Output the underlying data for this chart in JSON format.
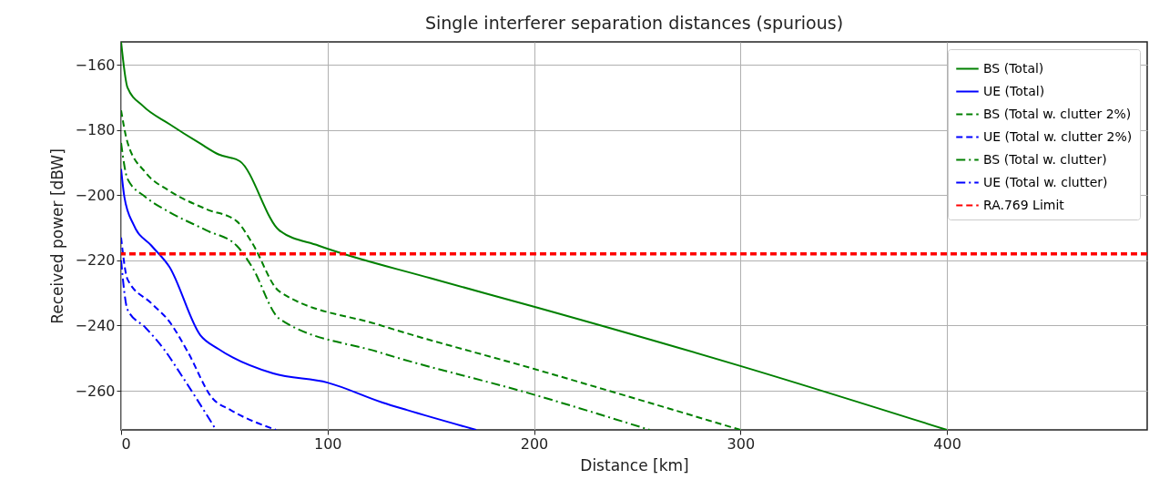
{
  "chart_data": {
    "type": "line",
    "title": "Single interferer separation distances (spurious)",
    "xlabel": "Distance [km]",
    "ylabel": "Received power [dBW]",
    "xlim": [
      0,
      497
    ],
    "ylim": [
      -272,
      -153
    ],
    "xticks": [
      0,
      100,
      200,
      300,
      400
    ],
    "yticks": [
      {
        "value": -160,
        "label": "−160"
      },
      {
        "value": -180,
        "label": "−180"
      },
      {
        "value": -200,
        "label": "−200"
      },
      {
        "value": -220,
        "label": "−220"
      },
      {
        "value": -240,
        "label": "−240"
      },
      {
        "value": -260,
        "label": "−260"
      }
    ],
    "grid": true,
    "legend": "top right",
    "series": [
      {
        "name": "BS (Total)",
        "color": "#008000",
        "line_style": "solid",
        "x": [
          0,
          3.1,
          10.5,
          23.4,
          38.4,
          47.2,
          57.5,
          76.6,
          95.7,
          150,
          200,
          300,
          400
        ],
        "values": [
          -153,
          -167,
          -172.6,
          -178.2,
          -184.2,
          -187.5,
          -189.6,
          -210.8,
          -215.5,
          -225.5,
          -234.2,
          -252.4,
          -272
        ]
      },
      {
        "name": "UE (Total)",
        "color": "#0000ff",
        "line_style": "solid",
        "x": [
          0,
          1.6,
          6,
          14.7,
          23.4,
          38.4,
          47.2,
          73.7,
          100,
          126.6,
          138.4,
          172
        ],
        "values": [
          -192,
          -200.6,
          -209,
          -215.5,
          -222,
          -243,
          -247.2,
          -254.7,
          -257.5,
          -263.6,
          -265.9,
          -272
        ]
      },
      {
        "name": "BS (Total w. clutter 2%)",
        "color": "#008000",
        "line_style": "dashed",
        "x": [
          0,
          3.1,
          11.9,
          23.4,
          41.3,
          56,
          63.4,
          76.6,
          125,
          200,
          300
        ],
        "values": [
          -174,
          -183.8,
          -193.1,
          -198.7,
          -204.3,
          -208,
          -214.6,
          -229.5,
          -239.8,
          -253.3,
          -272
        ]
      },
      {
        "name": "UE (Total w. clutter 2%)",
        "color": "#0000ff",
        "line_style": "dashed",
        "x": [
          0,
          3.1,
          14.7,
          23.4,
          32.4,
          44.1,
          53,
          75
        ],
        "values": [
          -213,
          -225.8,
          -233.2,
          -238.8,
          -248.2,
          -262.2,
          -265.9,
          -272
        ]
      },
      {
        "name": "BS (Total w. clutter)",
        "color": "#008000",
        "line_style": "dashdot",
        "x": [
          0,
          3.1,
          11.9,
          23.4,
          41.3,
          56,
          63.4,
          76.6,
          125,
          200,
          256
        ],
        "values": [
          -184,
          -195,
          -200.6,
          -205.2,
          -210.8,
          -215.5,
          -222,
          -237.9,
          -248.2,
          -261.2,
          -272
        ]
      },
      {
        "name": "UE (Total w. clutter)",
        "color": "#0000ff",
        "line_style": "dashdot",
        "x": [
          0,
          3.1,
          11.9,
          20.7,
          29.6,
          46
        ],
        "values": [
          -220,
          -235.1,
          -240.7,
          -247.2,
          -255.6,
          -272
        ]
      }
    ],
    "ref_lines": [
      {
        "axis": "y",
        "value": -218,
        "label": "RA.769 Limit",
        "color": "#ff0000",
        "line_style": "dashed"
      }
    ]
  }
}
